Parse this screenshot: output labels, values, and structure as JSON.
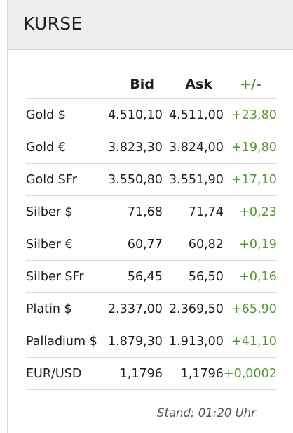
{
  "header": {
    "title": "KURSE"
  },
  "table": {
    "columns": {
      "bid": "Bid",
      "ask": "Ask",
      "change": "+/-"
    },
    "rows": [
      {
        "name": "Gold $",
        "bid": "4.510,10",
        "ask": "4.511,00",
        "change": "+23,80"
      },
      {
        "name": "Gold €",
        "bid": "3.823,30",
        "ask": "3.824,00",
        "change": "+19,80"
      },
      {
        "name": "Gold SFr",
        "bid": "3.550,80",
        "ask": "3.551,90",
        "change": "+17,10"
      },
      {
        "name": "Silber $",
        "bid": "71,68",
        "ask": "71,74",
        "change": "+0,23"
      },
      {
        "name": "Silber €",
        "bid": "60,77",
        "ask": "60,82",
        "change": "+0,19"
      },
      {
        "name": "Silber SFr",
        "bid": "56,45",
        "ask": "56,50",
        "change": "+0,16"
      },
      {
        "name": "Platin $",
        "bid": "2.337,00",
        "ask": "2.369,50",
        "change": "+65,90"
      },
      {
        "name": "Palladium $",
        "bid": "1.879,30",
        "ask": "1.913,00",
        "change": "+41,10"
      },
      {
        "name": "EUR/USD",
        "bid": "1,1796",
        "ask": "1,1796",
        "change": "+0,0002"
      }
    ]
  },
  "footer": {
    "stand": "Stand: 01:20 Uhr"
  },
  "colors": {
    "positive": "#4f9a2e",
    "header_bg": "#eeeeee"
  }
}
